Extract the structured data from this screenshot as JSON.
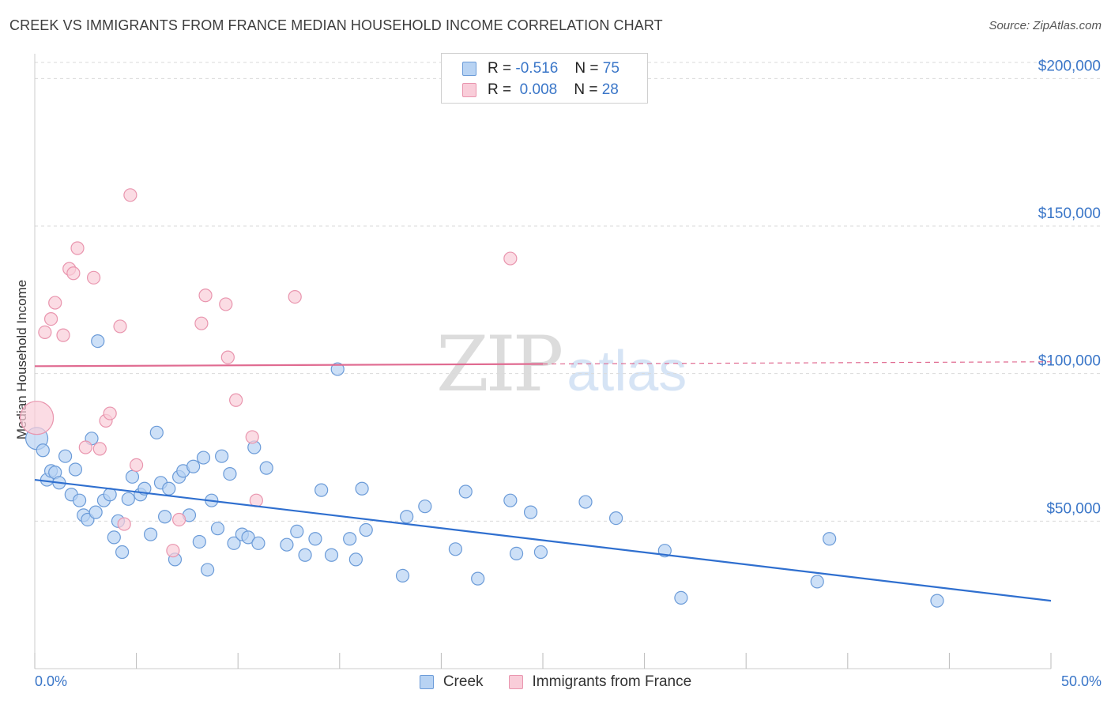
{
  "header": {
    "title": "CREEK VS IMMIGRANTS FROM FRANCE MEDIAN HOUSEHOLD INCOME CORRELATION CHART",
    "source": "Source: ZipAtlas.com"
  },
  "watermark": {
    "zip": "ZIP",
    "atlas": "atlas"
  },
  "legend_top": {
    "rows": [
      {
        "r_label": "R =",
        "r_value": "-0.516",
        "n_label": "N =",
        "n_value": "75"
      },
      {
        "r_label": "R =",
        "r_value": "0.008",
        "n_label": "N =",
        "n_value": "28"
      }
    ]
  },
  "legend_bottom": {
    "series": [
      "Creek",
      "Immigrants from France"
    ]
  },
  "colors": {
    "creek_fill": "#b8d3f3",
    "creek_stroke": "#6b9bd8",
    "creek_line": "#2f6fcf",
    "france_fill": "#f9cdd9",
    "france_stroke": "#e995ae",
    "france_line": "#e06b91",
    "axis_text": "#3a76c8",
    "grid": "#dadada"
  },
  "chart_data": {
    "type": "scatter",
    "title": "CREEK VS IMMIGRANTS FROM FRANCE MEDIAN HOUSEHOLD INCOME CORRELATION CHART",
    "xlabel": "",
    "ylabel": "Median Household Income",
    "xlim": [
      0,
      50
    ],
    "ylim": [
      0,
      210000
    ],
    "x_tick_labels": [
      "0.0%",
      "50.0%"
    ],
    "y_ticks": [
      50000,
      100000,
      150000,
      200000
    ],
    "y_tick_labels": [
      "$50,000",
      "$100,000",
      "$150,000",
      "$200,000"
    ],
    "grid": true,
    "legend": "bottom",
    "series": [
      {
        "name": "Creek",
        "R": -0.516,
        "N": 75,
        "trend": {
          "x": [
            0,
            50
          ],
          "y": [
            64000,
            23000
          ]
        },
        "points": [
          [
            0.1,
            78000
          ],
          [
            0.4,
            74000
          ],
          [
            0.6,
            64000
          ],
          [
            0.8,
            67000
          ],
          [
            1.0,
            66500
          ],
          [
            1.2,
            63000
          ],
          [
            1.5,
            72000
          ],
          [
            1.8,
            59000
          ],
          [
            2.0,
            67500
          ],
          [
            2.2,
            57000
          ],
          [
            2.4,
            52000
          ],
          [
            2.6,
            50500
          ],
          [
            2.8,
            78000
          ],
          [
            3.0,
            53000
          ],
          [
            3.1,
            111000
          ],
          [
            3.4,
            57000
          ],
          [
            3.7,
            59000
          ],
          [
            3.9,
            44500
          ],
          [
            4.1,
            50000
          ],
          [
            4.3,
            39500
          ],
          [
            4.6,
            57500
          ],
          [
            4.8,
            65000
          ],
          [
            5.2,
            59000
          ],
          [
            5.4,
            61000
          ],
          [
            5.7,
            45500
          ],
          [
            6.0,
            80000
          ],
          [
            6.2,
            63000
          ],
          [
            6.4,
            51500
          ],
          [
            6.6,
            61000
          ],
          [
            6.9,
            37000
          ],
          [
            7.1,
            65000
          ],
          [
            7.3,
            67000
          ],
          [
            7.6,
            52000
          ],
          [
            7.8,
            68500
          ],
          [
            8.1,
            43000
          ],
          [
            8.3,
            71500
          ],
          [
            8.5,
            33500
          ],
          [
            8.7,
            57000
          ],
          [
            9.0,
            47500
          ],
          [
            9.2,
            72000
          ],
          [
            9.6,
            66000
          ],
          [
            9.8,
            42500
          ],
          [
            10.2,
            45500
          ],
          [
            10.5,
            44500
          ],
          [
            10.8,
            75000
          ],
          [
            11.0,
            42500
          ],
          [
            11.4,
            68000
          ],
          [
            12.4,
            42000
          ],
          [
            12.9,
            46500
          ],
          [
            13.3,
            38500
          ],
          [
            13.8,
            44000
          ],
          [
            14.1,
            60500
          ],
          [
            14.6,
            38500
          ],
          [
            14.9,
            101500
          ],
          [
            15.5,
            44000
          ],
          [
            15.8,
            37000
          ],
          [
            16.1,
            61000
          ],
          [
            16.3,
            47000
          ],
          [
            18.1,
            31500
          ],
          [
            18.3,
            51500
          ],
          [
            19.2,
            55000
          ],
          [
            20.7,
            40500
          ],
          [
            21.2,
            60000
          ],
          [
            21.8,
            30500
          ],
          [
            23.4,
            57000
          ],
          [
            23.7,
            39000
          ],
          [
            24.4,
            53000
          ],
          [
            24.9,
            39500
          ],
          [
            27.1,
            56500
          ],
          [
            28.6,
            51000
          ],
          [
            31.0,
            40000
          ],
          [
            31.8,
            24000
          ],
          [
            38.5,
            29500
          ],
          [
            39.1,
            44000
          ],
          [
            44.4,
            23000
          ]
        ],
        "point_radii": {
          "0.1,78000": "large"
        }
      },
      {
        "name": "Immigrants from France",
        "R": 0.008,
        "N": 28,
        "trend": {
          "x": [
            0,
            50
          ],
          "y": [
            102500,
            104000
          ]
        },
        "points": [
          [
            0.1,
            85000
          ],
          [
            0.5,
            114000
          ],
          [
            0.8,
            118500
          ],
          [
            1.0,
            124000
          ],
          [
            1.4,
            113000
          ],
          [
            1.7,
            135500
          ],
          [
            1.9,
            134000
          ],
          [
            2.1,
            142500
          ],
          [
            2.5,
            75000
          ],
          [
            2.9,
            132500
          ],
          [
            3.2,
            74500
          ],
          [
            3.5,
            84000
          ],
          [
            3.7,
            86500
          ],
          [
            4.2,
            116000
          ],
          [
            4.4,
            49000
          ],
          [
            4.7,
            160500
          ],
          [
            5.0,
            69000
          ],
          [
            6.8,
            40000
          ],
          [
            7.1,
            50500
          ],
          [
            8.2,
            117000
          ],
          [
            8.4,
            126500
          ],
          [
            9.4,
            123500
          ],
          [
            9.5,
            105500
          ],
          [
            9.9,
            91000
          ],
          [
            10.7,
            78500
          ],
          [
            10.9,
            57000
          ],
          [
            12.8,
            126000
          ],
          [
            23.4,
            139000
          ]
        ]
      }
    ]
  }
}
